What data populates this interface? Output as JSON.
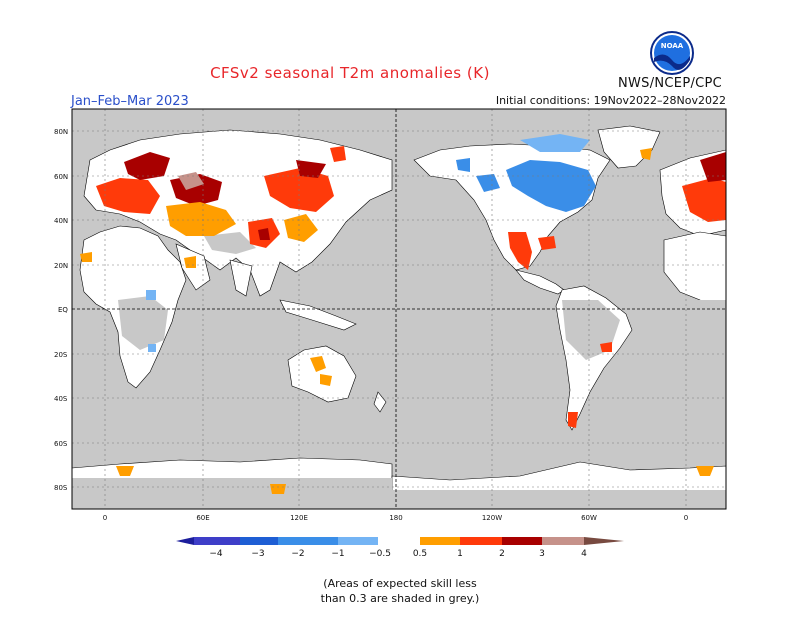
{
  "header": {
    "title": "CFSv2 seasonal T2m anomalies (K)",
    "org": "NWS/NCEP/CPC",
    "logo_text": "NOAA",
    "season": "Jan–Feb–Mar 2023",
    "initial_conditions": "Initial conditions: 19Nov2022–28Nov2022"
  },
  "map": {
    "projection": "equirectangular",
    "center_longitude": 180,
    "longitude_range": [
      -30,
      390
    ],
    "latitude_range": [
      -90,
      90
    ],
    "gridlines": "dashed",
    "lat_labels": [
      "80N",
      "60N",
      "40N",
      "20N",
      "EQ",
      "20S",
      "40S",
      "60S",
      "80S"
    ],
    "lon_labels": [
      "0",
      "60E",
      "120E",
      "180",
      "120W",
      "60W",
      "0"
    ]
  },
  "legend": {
    "labels": [
      "−4",
      "−3",
      "−2",
      "−1",
      "−0.5",
      "0.5",
      "1",
      "2",
      "3",
      "4"
    ],
    "colors": [
      "#1c1e9c",
      "#3e3ec8",
      "#1e5ed4",
      "#3a8ee8",
      "#74b4f4",
      "#ffffff",
      "#ff9e00",
      "#ff3a0a",
      "#a80000",
      "#c6928a",
      "#784a40"
    ],
    "grey_color": "#c8c8c8"
  },
  "note": {
    "line1": "(Areas of expected skill less",
    "line2": "than 0.3 are shaded in grey.)"
  }
}
